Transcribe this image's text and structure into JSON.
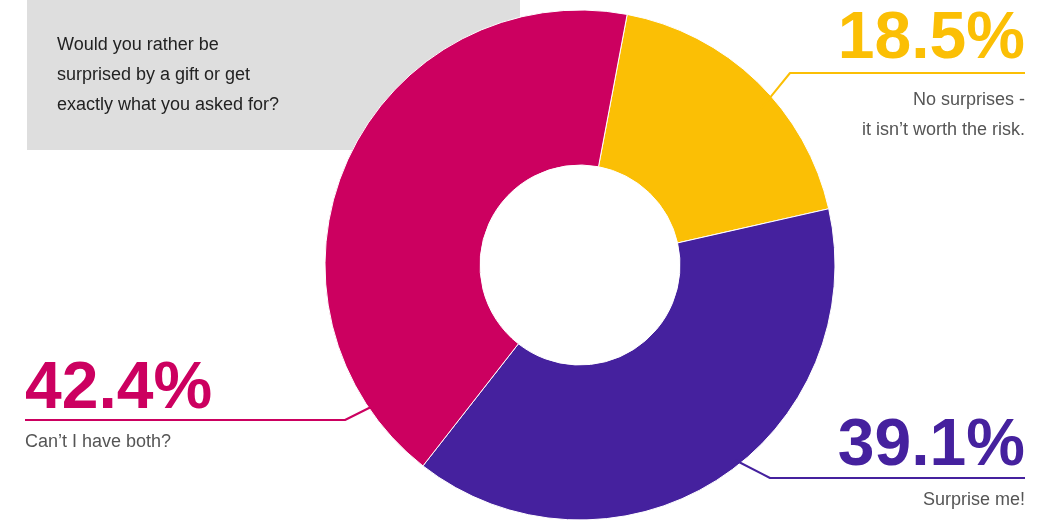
{
  "chart_data": {
    "type": "donut",
    "title": "Would you rather be\nsurprised by a gift or get\nexactly what you asked for?",
    "categories": [
      "No surprises -\nit isn’t worth the risk.",
      "Surprise me!",
      "Can’t I have both?"
    ],
    "values": [
      18.5,
      39.1,
      42.4
    ],
    "colors": [
      "#fbbf05",
      "#45219e",
      "#cc0060"
    ],
    "value_labels": [
      "18.5%",
      "39.1%",
      "42.4%"
    ]
  }
}
